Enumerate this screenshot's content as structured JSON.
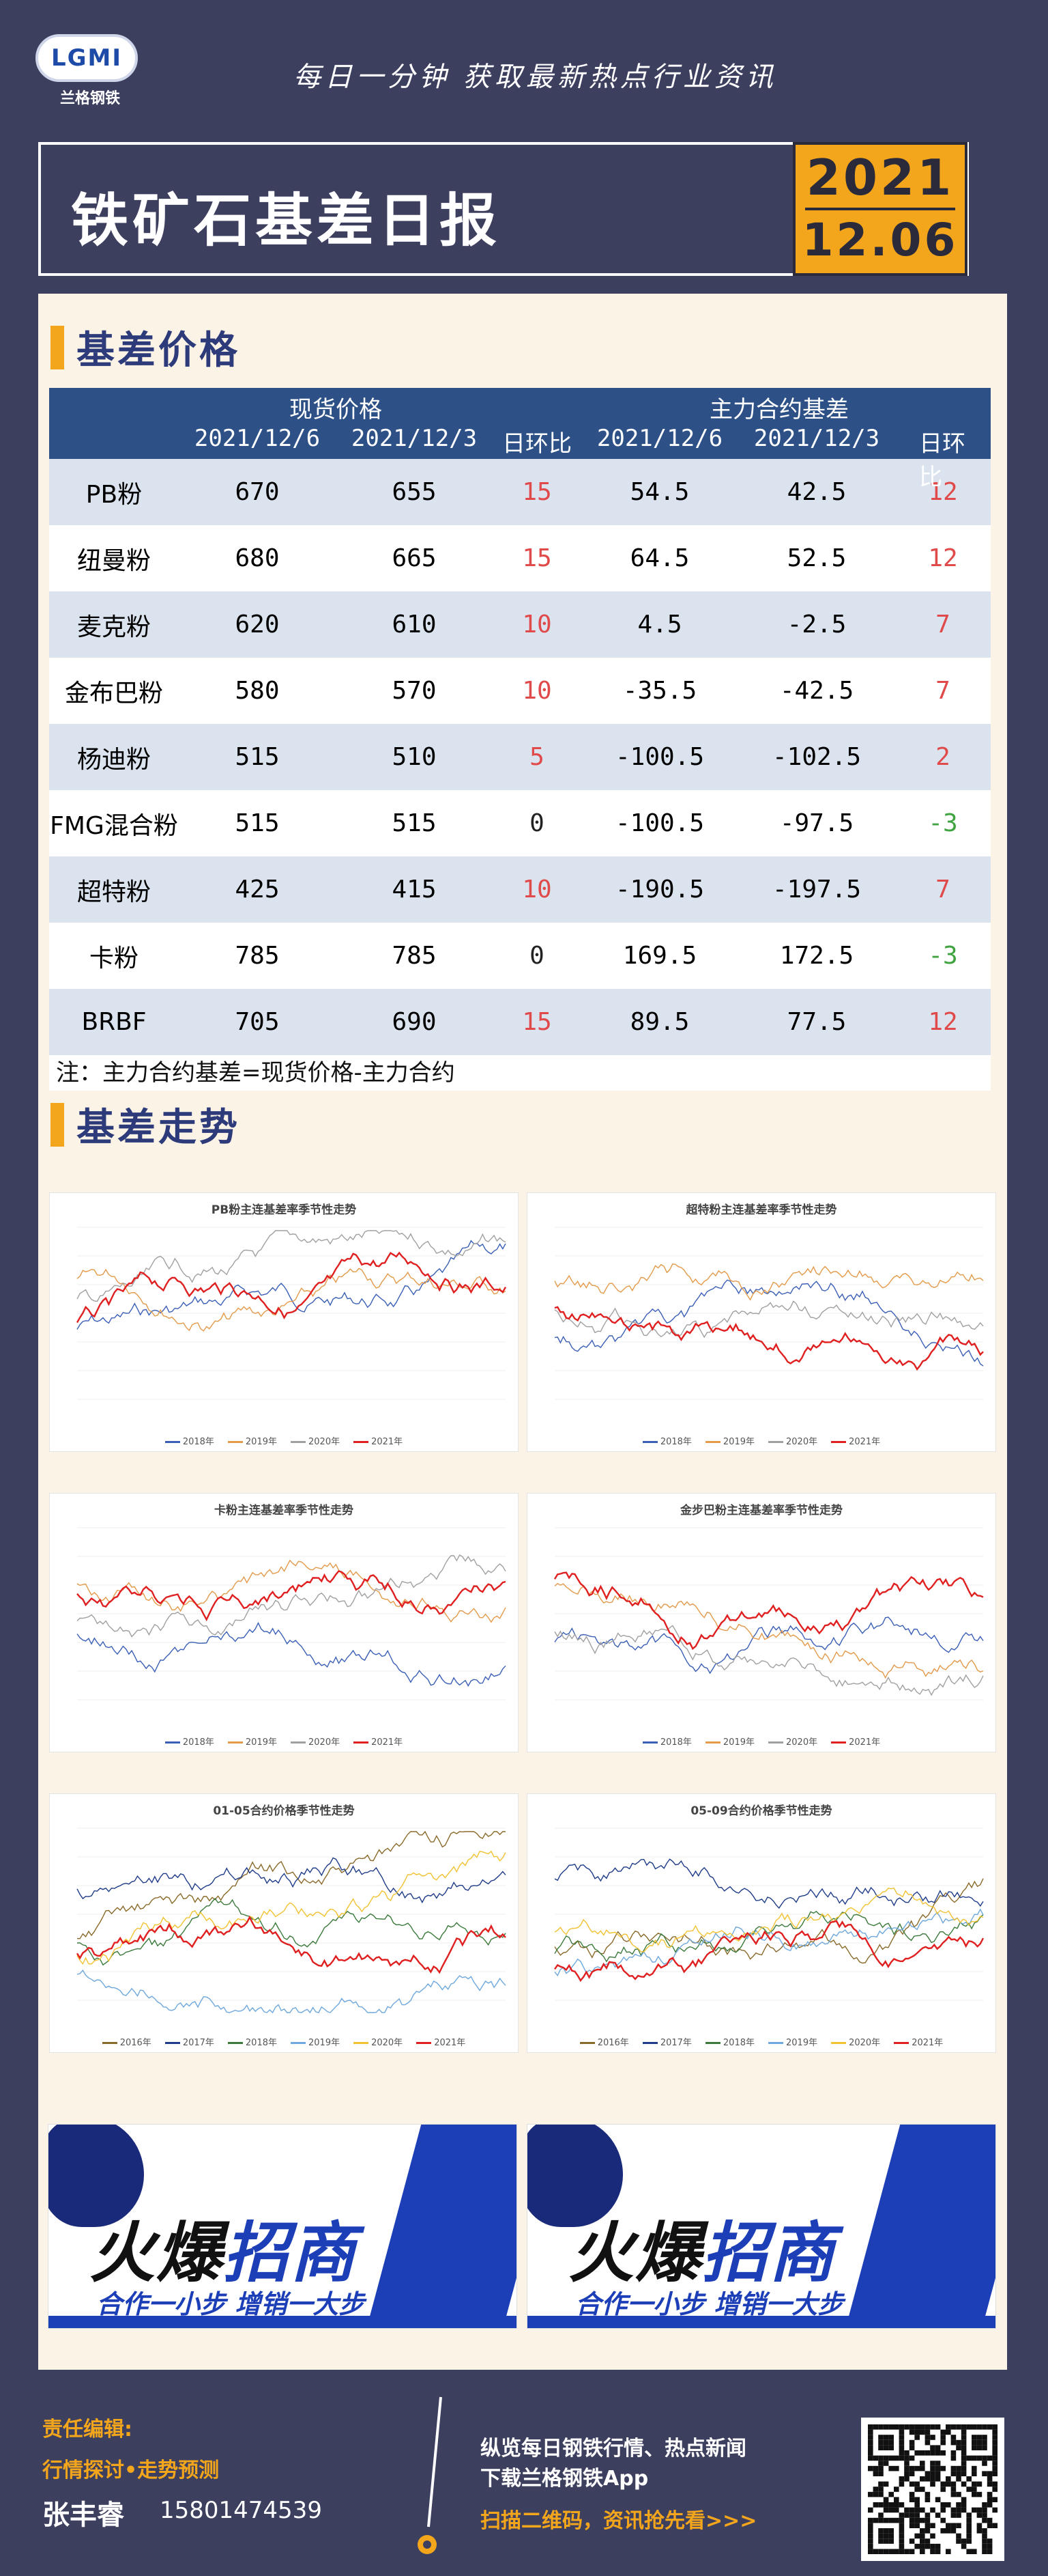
{
  "header": {
    "logo_text": "LGMI",
    "logo_sub": "兰格钢铁",
    "slogan": "每日一分钟  获取最新热点行业资讯",
    "title": "铁矿石基差日报",
    "date_year": "2021",
    "date_md": "12.06"
  },
  "colors": {
    "accent": "#f3a61c",
    "navy": "#2d5187",
    "background": "#3d3f5e",
    "up": "#e04a4a",
    "down": "#3fa33f"
  },
  "section1": {
    "title": "基差价格"
  },
  "table": {
    "group_spot": "现货价格",
    "group_basis": "主力合约基差",
    "headers": [
      "",
      "2021/12/6",
      "2021/12/3",
      "日环比",
      "2021/12/6",
      "2021/12/3",
      "日环比"
    ],
    "rows": [
      {
        "name": "PB粉",
        "s1": "670",
        "s2": "655",
        "sd": "15",
        "b1": "54.5",
        "b2": "42.5",
        "bd": "12",
        "sdc": "up",
        "bdc": "up"
      },
      {
        "name": "纽曼粉",
        "s1": "680",
        "s2": "665",
        "sd": "15",
        "b1": "64.5",
        "b2": "52.5",
        "bd": "12",
        "sdc": "up",
        "bdc": "up"
      },
      {
        "name": "麦克粉",
        "s1": "620",
        "s2": "610",
        "sd": "10",
        "b1": "4.5",
        "b2": "-2.5",
        "bd": "7",
        "sdc": "up",
        "bdc": "up"
      },
      {
        "name": "金布巴粉",
        "s1": "580",
        "s2": "570",
        "sd": "10",
        "b1": "-35.5",
        "b2": "-42.5",
        "bd": "7",
        "sdc": "up",
        "bdc": "up"
      },
      {
        "name": "杨迪粉",
        "s1": "515",
        "s2": "510",
        "sd": "5",
        "b1": "-100.5",
        "b2": "-102.5",
        "bd": "2",
        "sdc": "up",
        "bdc": "up"
      },
      {
        "name": "FMG混合粉",
        "s1": "515",
        "s2": "515",
        "sd": "0",
        "b1": "-100.5",
        "b2": "-97.5",
        "bd": "-3",
        "sdc": "flat",
        "bdc": "down"
      },
      {
        "name": "超特粉",
        "s1": "425",
        "s2": "415",
        "sd": "10",
        "b1": "-190.5",
        "b2": "-197.5",
        "bd": "7",
        "sdc": "up",
        "bdc": "up"
      },
      {
        "name": "卡粉",
        "s1": "785",
        "s2": "785",
        "sd": "0",
        "b1": "169.5",
        "b2": "172.5",
        "bd": "-3",
        "sdc": "flat",
        "bdc": "down"
      },
      {
        "name": "BRBF",
        "s1": "705",
        "s2": "690",
        "sd": "15",
        "b1": "89.5",
        "b2": "77.5",
        "bd": "12",
        "sdc": "up",
        "bdc": "up"
      }
    ],
    "note": "注：主力合约基差=现货价格-主力合约"
  },
  "section2": {
    "title": "基差走势"
  },
  "charts": [
    {
      "title": "PB粉主连基差率季节性走势",
      "legend": [
        "2018年",
        "2019年",
        "2020年",
        "2021年"
      ]
    },
    {
      "title": "超特粉主连基差率季节性走势",
      "legend": [
        "2018年",
        "2019年",
        "2020年",
        "2021年"
      ]
    },
    {
      "title": "卡粉主连基差率季节性走势",
      "legend": [
        "2018年",
        "2019年",
        "2020年",
        "2021年"
      ]
    },
    {
      "title": "金步巴粉主连基差率季节性走势",
      "legend": [
        "2018年",
        "2019年",
        "2020年",
        "2021年"
      ]
    },
    {
      "title": "01-05合约价格季节性走势",
      "legend": [
        "2016年",
        "2017年",
        "2018年",
        "2019年",
        "2020年",
        "2021年"
      ]
    },
    {
      "title": "05-09合约价格季节性走势",
      "legend": [
        "2016年",
        "2017年",
        "2018年",
        "2019年",
        "2020年",
        "2021年"
      ]
    }
  ],
  "ads": [
    {
      "main_a": "火爆",
      "main_b": "招商",
      "sub": "合作一小步  增销一大步"
    },
    {
      "main_a": "火爆",
      "main_b": "招商",
      "sub": "合作一小步  增销一大步"
    }
  ],
  "footer": {
    "editor_label": "责任编辑:",
    "topic": "行情探讨•走势预测",
    "name": "张丰睿",
    "phone": "15801474539",
    "line1": "纵览每日钢铁行情、热点新闻",
    "line2": "下载兰格钢铁App",
    "line3": "扫描二维码，资讯抢先看>>>"
  }
}
